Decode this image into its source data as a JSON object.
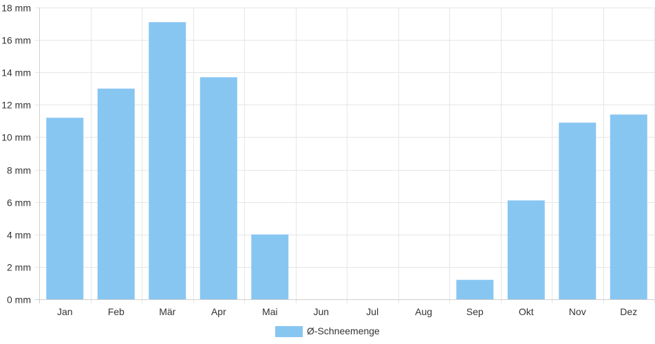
{
  "chart_data": {
    "type": "bar",
    "categories": [
      "Jan",
      "Feb",
      "Mär",
      "Apr",
      "Mai",
      "Jun",
      "Jul",
      "Aug",
      "Sep",
      "Okt",
      "Nov",
      "Dez"
    ],
    "series": [
      {
        "name": "Ø-Schneemenge",
        "values": [
          11.2,
          13.0,
          17.1,
          13.7,
          4.0,
          0,
          0,
          0,
          1.2,
          6.1,
          10.9,
          11.4
        ]
      }
    ],
    "ylim": [
      0,
      18
    ],
    "yticks": [
      0,
      2,
      4,
      6,
      8,
      10,
      12,
      14,
      16,
      18
    ],
    "ytick_labels": [
      "0 mm",
      "2 mm",
      "4 mm",
      "6 mm",
      "8 mm",
      "10 mm",
      "12 mm",
      "14 mm",
      "16 mm",
      "18 mm"
    ],
    "grid": true,
    "legend_position": "bottom-center",
    "colors": {
      "bar": "#88c6f2",
      "grid": "#e6e6e6",
      "axis": "#cfcfcf",
      "text": "#333333"
    }
  }
}
